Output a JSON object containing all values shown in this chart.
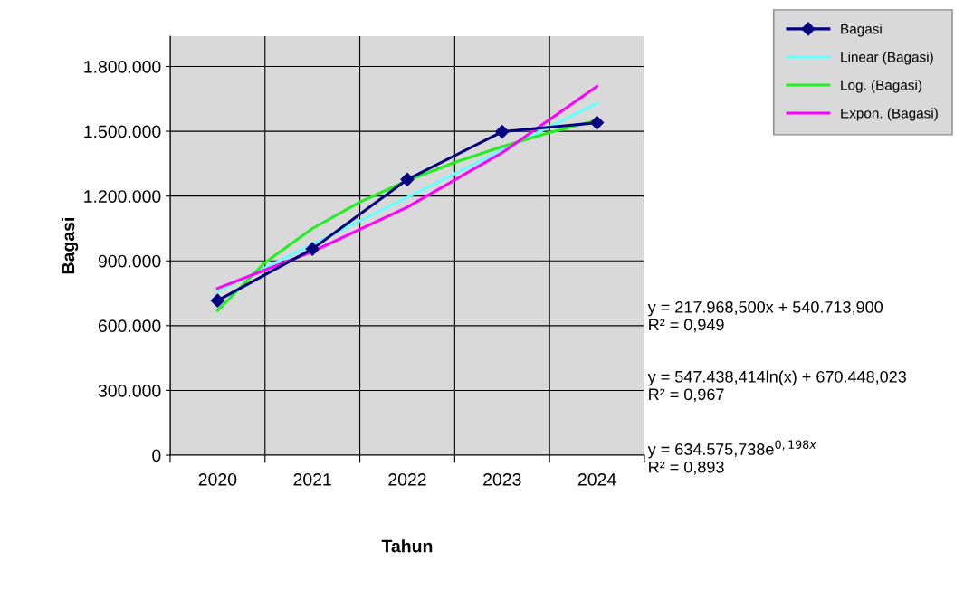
{
  "chart_data": {
    "type": "line",
    "xlabel": "Tahun",
    "ylabel": "Bagasi",
    "x": [
      2020,
      2021,
      2022,
      2023,
      2024
    ],
    "series": [
      {
        "name": "Bagasi",
        "color": "#000080",
        "marker": "diamond",
        "values": [
          716000,
          955000,
          1277000,
          1498000,
          1540000
        ]
      },
      {
        "name": "Linear (Bagasi)",
        "color": "#66ffff",
        "marker": "none",
        "x": [
          2020,
          2024
        ],
        "values": [
          758000,
          1630000
        ]
      },
      {
        "name": "Log. (Bagasi)",
        "color": "#22ee22",
        "marker": "none",
        "x": [
          2020,
          2020.5,
          2021,
          2021.5,
          2022,
          2022.5,
          2023,
          2023.5,
          2024
        ],
        "values": [
          670000,
          892000,
          1050000,
          1172000,
          1272000,
          1356000,
          1429000,
          1494000,
          1551000
        ]
      },
      {
        "name": "Expon. (Bagasi)",
        "color": "#ff00ff",
        "marker": "none",
        "x": [
          2020,
          2021,
          2022,
          2023,
          2024
        ],
        "values": [
          773000,
          943000,
          1149000,
          1401000,
          1708000
        ]
      }
    ],
    "xlim": [
      2019.5,
      2024.5
    ],
    "xticks": [
      {
        "value": 2019.5,
        "label": null
      },
      2020,
      {
        "value": 2020.5,
        "label": null
      },
      2021,
      {
        "value": 2021.5,
        "label": null
      },
      2022,
      {
        "value": 2022.5,
        "label": null
      },
      2023,
      {
        "value": 2023.5,
        "label": null
      },
      2024,
      {
        "value": 2024.5,
        "label": null
      }
    ],
    "ylim": [
      0,
      1940000
    ],
    "yticks": [
      {
        "value": 0,
        "label": "0"
      },
      {
        "value": 300000,
        "label": "300.000"
      },
      {
        "value": 600000,
        "label": "600.000"
      },
      {
        "value": 900000,
        "label": "900.000"
      },
      {
        "value": 1200000,
        "label": "1.200.000"
      },
      {
        "value": 1500000,
        "label": "1.500.000"
      },
      {
        "value": 1800000,
        "label": "1.800.000"
      }
    ],
    "grid": true,
    "legend": "top right",
    "annotations": [
      "y = 217.968,500x + 540.713,900\nR² = 0,949",
      "y = 547.438,414ln(x) + 670.448,023\nR² = 0,967",
      "y = 634.575,738e$^{0,198x}$\nR² = 0,893"
    ]
  }
}
